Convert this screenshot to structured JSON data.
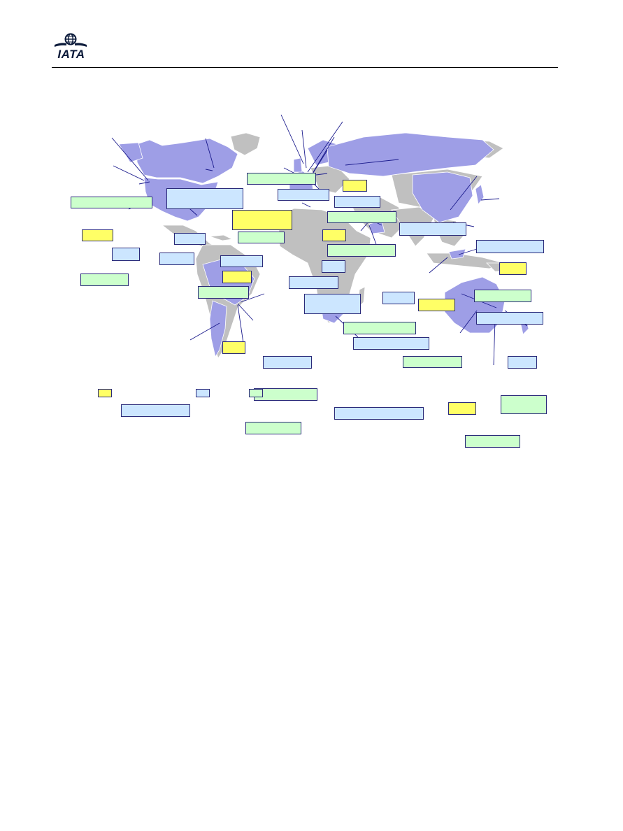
{
  "header": {
    "logo_text": "IATA",
    "logo_icon": "globe-wings-icon"
  },
  "map": {
    "highlight_color": "#9e9ee6",
    "land_color": "#c0c0c0",
    "border_color": "#ffffff",
    "leader_color": "#1a1a8c"
  },
  "labels": [],
  "legend": {
    "colors": {
      "yellow": "#ffff66",
      "blue": "#cce6ff",
      "green": "#ccffcc"
    }
  }
}
